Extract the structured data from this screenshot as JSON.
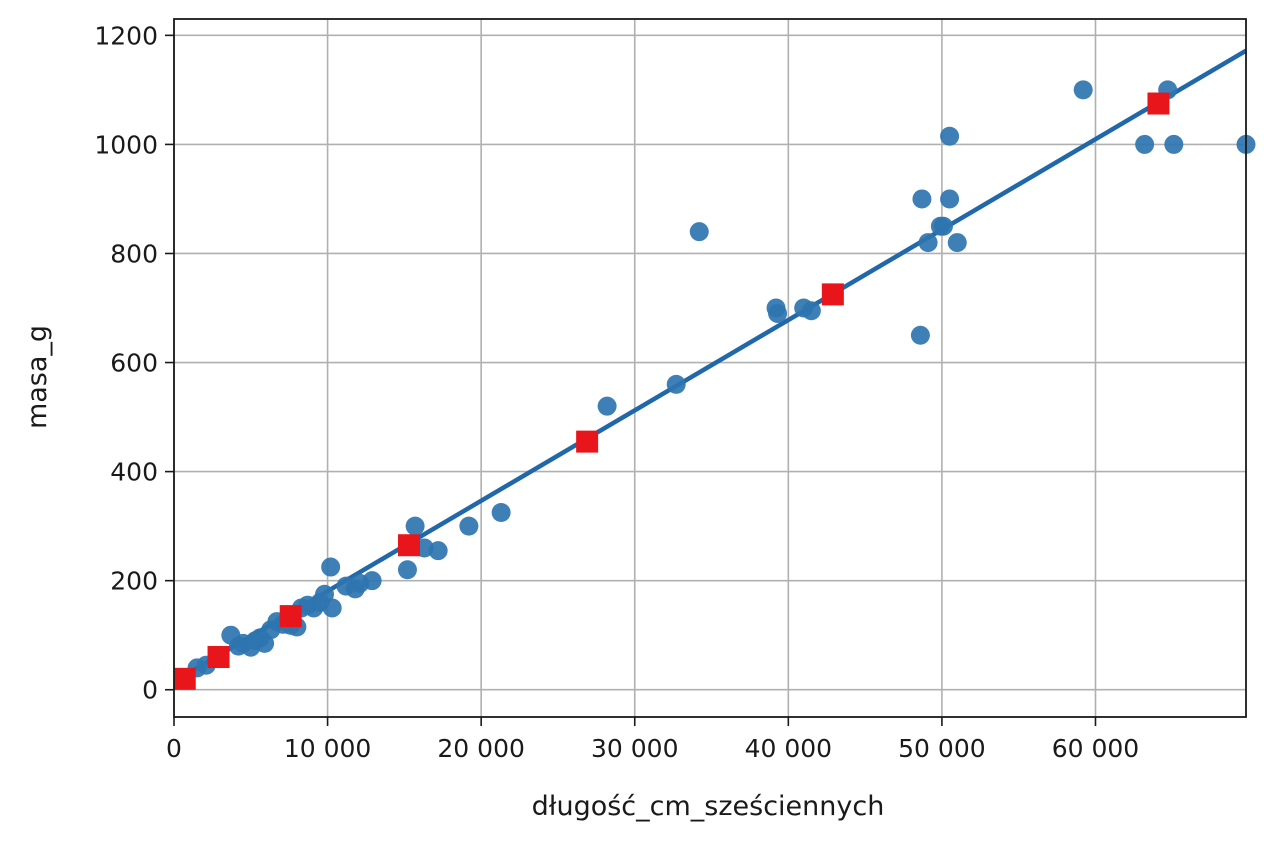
{
  "chart_data": {
    "type": "scatter",
    "xlabel": "długość_cm_sześciennych",
    "ylabel": "masa_g",
    "xlim": [
      0,
      69800
    ],
    "ylim": [
      -50,
      1230
    ],
    "x_ticks": [
      0,
      10000,
      20000,
      30000,
      40000,
      50000,
      60000
    ],
    "x_tick_labels": [
      "0",
      "10 000",
      "20 000",
      "30 000",
      "40 000",
      "50 000",
      "60 000"
    ],
    "y_ticks": [
      0,
      200,
      400,
      600,
      800,
      1000,
      1200
    ],
    "y_tick_labels": [
      "0",
      "200",
      "400",
      "600",
      "800",
      "1000",
      "1200"
    ],
    "grid": true,
    "colors": {
      "points": "#2e75b0",
      "fit_line": "#2168a8",
      "markers": "#e8161b"
    },
    "series": [
      {
        "kind": "scatter",
        "x": [
          1500,
          2100,
          3700,
          4200,
          4500,
          5000,
          5300,
          5600,
          5900,
          6300,
          6700,
          7100,
          7600,
          8000,
          8300,
          8700,
          9100,
          9500,
          9800,
          10200,
          10300,
          11200,
          11800,
          12100,
          12900,
          15200,
          15700,
          16300,
          17200,
          19200,
          21300,
          28200,
          32700,
          34200,
          39200,
          39300,
          41000,
          41500,
          48600,
          48700,
          49100,
          49900,
          50100,
          50500,
          50500,
          51000,
          59200,
          63200,
          64700,
          65100,
          69800
        ],
        "y": [
          40,
          45,
          100,
          80,
          85,
          78,
          90,
          95,
          85,
          110,
          125,
          120,
          118,
          115,
          150,
          155,
          150,
          160,
          175,
          225,
          150,
          190,
          185,
          195,
          200,
          220,
          300,
          260,
          255,
          300,
          325,
          520,
          560,
          840,
          700,
          690,
          700,
          695,
          650,
          900,
          820,
          850,
          850,
          900,
          1015,
          820,
          1100,
          1000,
          1100,
          1000,
          1000
        ]
      },
      {
        "kind": "line",
        "x": [
          0,
          69800
        ],
        "y": [
          15,
          1172
        ]
      },
      {
        "kind": "square-marker",
        "x": [
          700,
          2900,
          7600,
          15300,
          26900,
          42900,
          64100
        ],
        "y": [
          20,
          60,
          135,
          265,
          455,
          725,
          1075
        ]
      }
    ]
  }
}
